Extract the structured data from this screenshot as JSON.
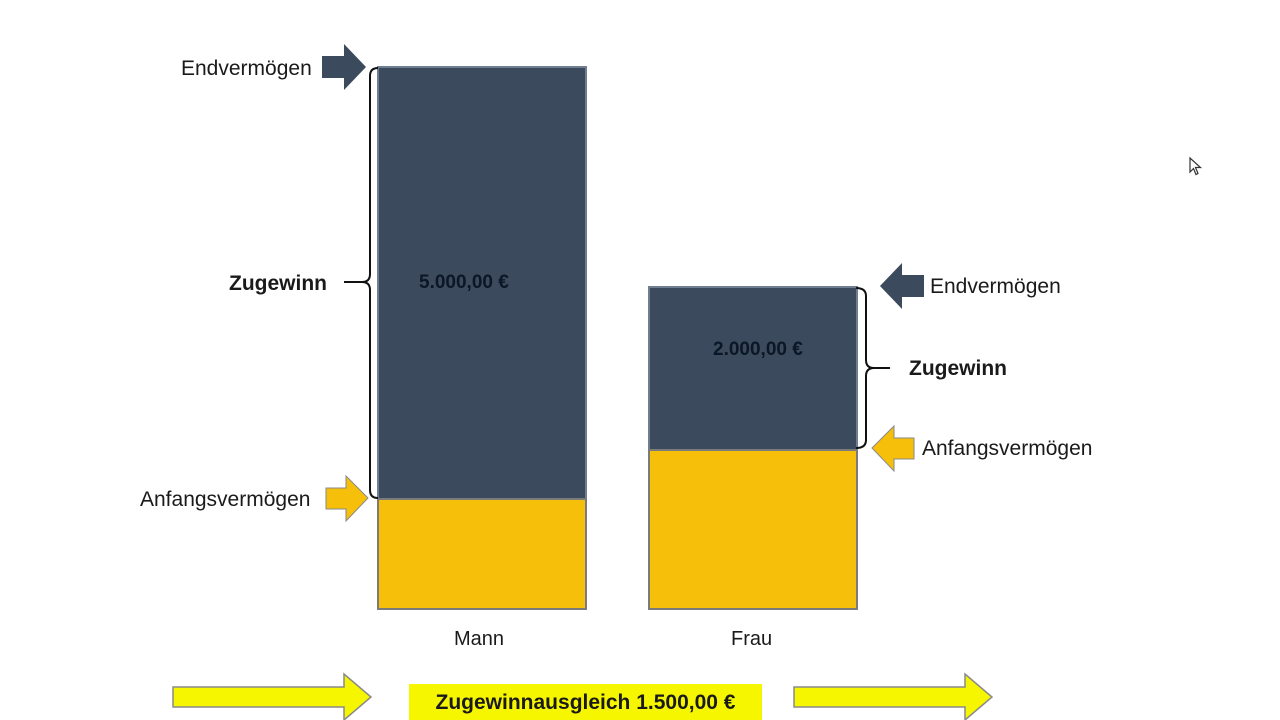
{
  "chart_data": {
    "type": "bar",
    "categories": [
      "Mann",
      "Frau"
    ],
    "series": [
      {
        "name": "Anfangsvermögen"
      },
      {
        "name": "Zugewinn",
        "values": [
          5000,
          2000
        ]
      }
    ],
    "value_labels": [
      "5.000,00 €",
      "2.000,00 €"
    ],
    "annotations": {
      "end_label": "Endvermögen",
      "gain_label": "Zugewinn",
      "start_label": "Anfangsvermögen"
    }
  },
  "banner": {
    "text": "Zugewinnausgleich 1.500,00 €"
  },
  "colors": {
    "gain": "#3b4a5c",
    "start": "#f6bf0a",
    "banner": "#f6f600",
    "arrow_yellow": "#f6f600",
    "arrow_orange": "#f6bf0a",
    "arrow_blue": "#3b4a5c"
  },
  "icons": [
    "arrow-right-icon",
    "arrow-left-icon",
    "curly-brace-icon",
    "cursor-icon"
  ]
}
